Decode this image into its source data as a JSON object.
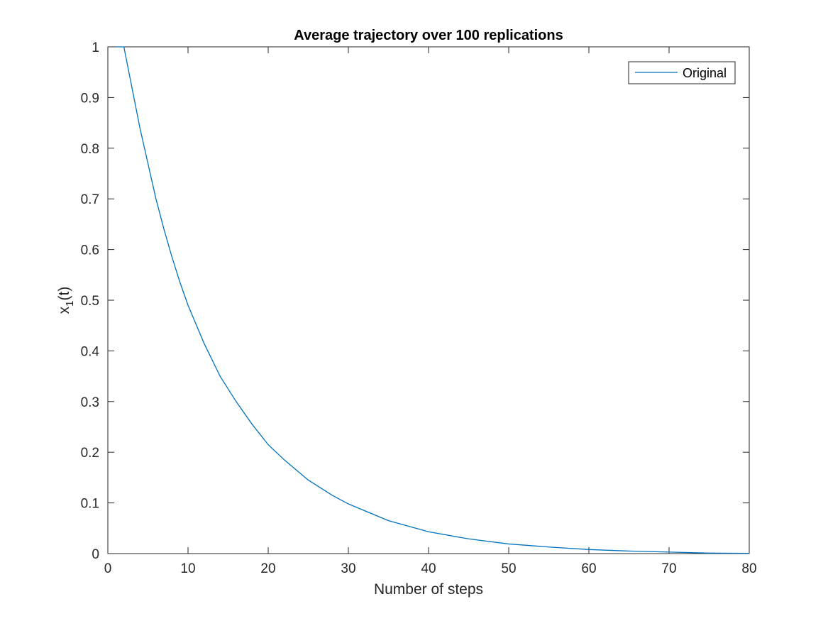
{
  "chart_data": {
    "type": "line",
    "title": "Average trajectory over 100 replications",
    "xlabel": "Number of steps",
    "ylabel": {
      "base": "x",
      "subscript": "1",
      "suffix": "(t)"
    },
    "xlim": [
      0,
      80
    ],
    "ylim": [
      0,
      1
    ],
    "xticks": [
      0,
      10,
      20,
      30,
      40,
      50,
      60,
      70,
      80
    ],
    "yticks": [
      0,
      0.1,
      0.2,
      0.3,
      0.4,
      0.5,
      0.6,
      0.7,
      0.8,
      0.9,
      1
    ],
    "grid": false,
    "legend_position": "top-right",
    "series": [
      {
        "name": "Original",
        "color": "#0072BD",
        "x": [
          1,
          2,
          3,
          4,
          5,
          6,
          7,
          8,
          9,
          10,
          12,
          14,
          16,
          18,
          20,
          22,
          25,
          28,
          30,
          35,
          40,
          45,
          50,
          55,
          60,
          65,
          70,
          75,
          80
        ],
        "y": [
          1,
          1,
          0.92,
          0.84,
          0.77,
          0.7,
          0.64,
          0.585,
          0.535,
          0.49,
          0.415,
          0.35,
          0.3,
          0.255,
          0.215,
          0.185,
          0.145,
          0.115,
          0.098,
          0.065,
          0.043,
          0.029,
          0.019,
          0.013,
          0.008,
          0.005,
          0.003,
          0.001,
          0.0005
        ]
      }
    ]
  }
}
